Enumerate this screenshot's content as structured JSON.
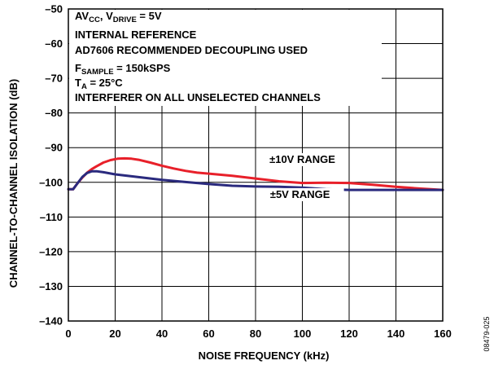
{
  "chart_data": {
    "type": "line",
    "title": "",
    "xlabel": "NOISE FREQUENCY (kHz)",
    "ylabel": "CHANNEL-TO-CHANNEL ISOLATION (dB)",
    "xlim": [
      0,
      160
    ],
    "ylim": [
      -140,
      -50
    ],
    "xticks": [
      "0",
      "20",
      "40",
      "60",
      "80",
      "100",
      "120",
      "140",
      "160"
    ],
    "yticks": [
      "–50",
      "–60",
      "–70",
      "–80",
      "–90",
      "–100",
      "–110",
      "–120",
      "–130",
      "–140"
    ],
    "grid": true,
    "annotations": [
      {
        "parts": [
          {
            "t": "AV"
          },
          {
            "t": "CC",
            "sub": true
          },
          {
            "t": ", V"
          },
          {
            "t": "DRIVE",
            "sub": true
          },
          {
            "t": " = 5V"
          }
        ]
      },
      {
        "parts": [
          {
            "t": "INTERNAL REFERENCE"
          }
        ]
      },
      {
        "parts": [
          {
            "t": "AD7606 RECOMMENDED DECOUPLING USED"
          }
        ]
      },
      {
        "parts": [
          {
            "t": "F"
          },
          {
            "t": "SAMPLE",
            "sub": true
          },
          {
            "t": " = 150kSPS"
          }
        ]
      },
      {
        "parts": [
          {
            "t": "T"
          },
          {
            "t": "A",
            "sub": true
          },
          {
            "t": " = 25°C"
          }
        ]
      },
      {
        "parts": [
          {
            "t": "INTERFERER ON ALL UNSELECTED CHANNELS"
          }
        ]
      }
    ],
    "series": [
      {
        "name": "±10V RANGE",
        "color": "#e8202a",
        "x": [
          0,
          2,
          4,
          6,
          8,
          10,
          12,
          15,
          18,
          21,
          24,
          27,
          30,
          35,
          40,
          45,
          50,
          55,
          60,
          70,
          80,
          90,
          100,
          110,
          120,
          130,
          140,
          150,
          160
        ],
        "y": [
          -102,
          -102,
          -100.2,
          -98.6,
          -97.2,
          -96.2,
          -95.4,
          -94.3,
          -93.6,
          -93.2,
          -93.1,
          -93.2,
          -93.5,
          -94.3,
          -95.2,
          -96.0,
          -96.7,
          -97.2,
          -97.5,
          -98.1,
          -98.9,
          -99.7,
          -100.2,
          -100.1,
          -100.2,
          -100.7,
          -101.3,
          -101.8,
          -102.2
        ]
      },
      {
        "name": "±5V RANGE",
        "color": "#2a2a7e",
        "x": [
          0,
          2,
          4,
          6,
          8,
          10,
          12,
          15,
          20,
          30,
          40,
          50,
          60,
          70,
          80,
          90,
          100,
          110,
          120,
          130,
          140,
          150,
          160
        ],
        "y": [
          -102,
          -102,
          -100.2,
          -98.4,
          -97.3,
          -96.8,
          -96.8,
          -97.1,
          -97.7,
          -98.5,
          -99.3,
          -99.9,
          -100.5,
          -101.0,
          -101.2,
          -101.3,
          -101.5,
          -102.0,
          -102.2,
          -102.2,
          -102.2,
          -102.2,
          -102.2
        ]
      }
    ],
    "series_labels": [
      {
        "text": "±10V RANGE",
        "x": 100,
        "y": -94.4
      },
      {
        "text": "±5V RANGE",
        "x": 99,
        "y": -104.5
      }
    ]
  },
  "figure_id": "08479-025"
}
